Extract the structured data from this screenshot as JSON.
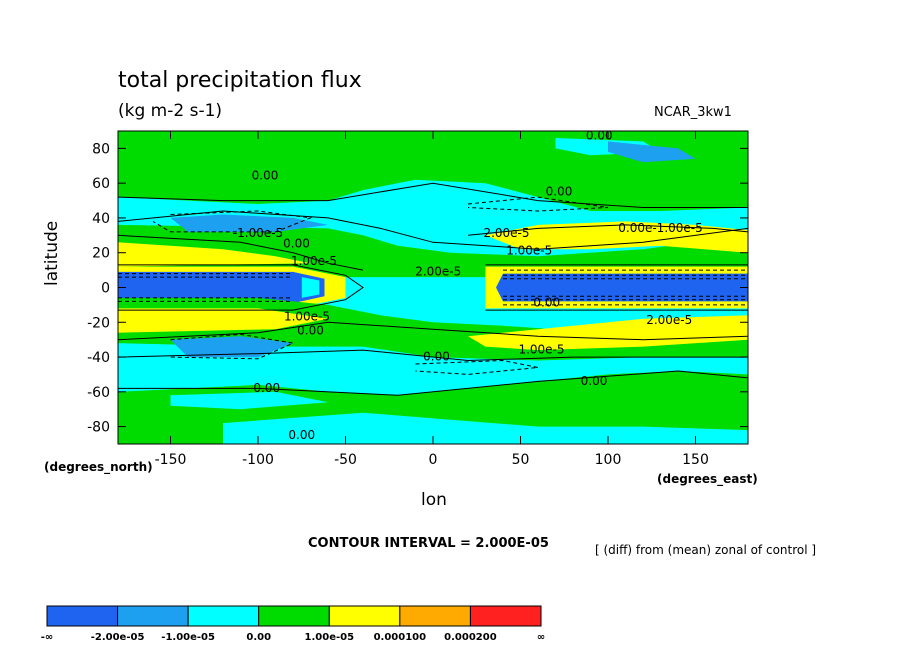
{
  "chart_data": {
    "type": "heatmap",
    "title": "total precipitation flux",
    "units": "(kg m-2 s-1)",
    "model_label": "NCAR_3kw1",
    "xlabel": "lon",
    "ylabel": "latitude",
    "x_unit": "(degrees_east)",
    "y_unit": "(degrees_north)",
    "xlim": [
      -180,
      180
    ],
    "ylim": [
      -90,
      90
    ],
    "x_ticks": [
      -150,
      -100,
      -50,
      0,
      50,
      100,
      150
    ],
    "y_ticks": [
      -80,
      -60,
      -40,
      -20,
      0,
      20,
      40,
      60,
      80
    ],
    "x_tick_labels": [
      "-150",
      "-100",
      "-50",
      "0",
      "50",
      "100",
      "150"
    ],
    "y_tick_labels": [
      "-80",
      "-60",
      "-40",
      "-20",
      "0",
      "20",
      "40",
      "60",
      "80"
    ],
    "contour_interval": "CONTOUR INTERVAL = 2.000E-05",
    "note": "[ (diff) from (mean) zonal of control ]",
    "colorbar": {
      "colors": [
        "#1e64f0",
        "#1ea0f0",
        "#00ffff",
        "#00dc00",
        "#ffff00",
        "#ffaa00",
        "#ff2020"
      ],
      "labels": [
        "-∞",
        "-2.00e-05",
        "-1.00e-05",
        "0.00",
        "1.00e-05",
        "0.000100",
        "0.000200",
        "∞"
      ]
    },
    "contour_labels": [
      {
        "text": "0.00",
        "lon": 95,
        "lat": 87
      },
      {
        "text": "0.00",
        "lon": -96,
        "lat": 64
      },
      {
        "text": "0.00",
        "lon": 72,
        "lat": 55
      },
      {
        "text": "-1.00e-5",
        "lon": -100,
        "lat": 31
      },
      {
        "text": "0.00",
        "lon": -78,
        "lat": 25
      },
      {
        "text": "2.00e-5",
        "lon": 42,
        "lat": 31
      },
      {
        "text": "0.00e-1.00e-5",
        "lon": 130,
        "lat": 34
      },
      {
        "text": "1.00e-5",
        "lon": 55,
        "lat": 21
      },
      {
        "text": "1.00e-5",
        "lon": -68,
        "lat": 15
      },
      {
        "text": "2.00e-5",
        "lon": 3,
        "lat": 9
      },
      {
        "text": "1.00e-5",
        "lon": -72,
        "lat": -17
      },
      {
        "text": "0.00",
        "lon": -70,
        "lat": -25
      },
      {
        "text": "0.00",
        "lon": 65,
        "lat": -9
      },
      {
        "text": "2.00e-5",
        "lon": 135,
        "lat": -19
      },
      {
        "text": "0.00",
        "lon": 2,
        "lat": -40
      },
      {
        "text": "1.00e-5",
        "lon": 62,
        "lat": -36
      },
      {
        "text": "0.00",
        "lon": -95,
        "lat": -58
      },
      {
        "text": "0.00",
        "lon": 92,
        "lat": -54
      },
      {
        "text": "0.00",
        "lon": -75,
        "lat": -85
      }
    ]
  }
}
